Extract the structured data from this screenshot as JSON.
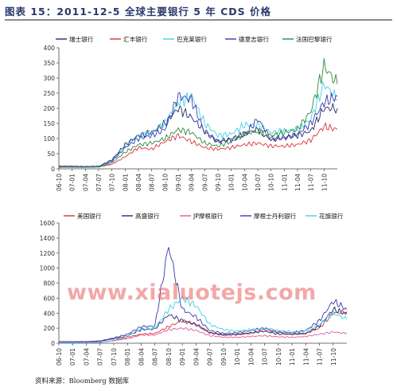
{
  "page": {
    "title": "图表 15：2011-12-5 全球主要银行 5 年 CDS 价格",
    "source": "资料来源：Bloomberg 数据库",
    "watermark": "www.xialuotejs.com"
  },
  "chart_data": [
    {
      "type": "line",
      "title": "",
      "xlabel": "",
      "ylabel": "",
      "ylim": [
        0,
        400
      ],
      "yticks": [
        0,
        50,
        100,
        150,
        200,
        250,
        300,
        350,
        400
      ],
      "xticks": [
        "06-10",
        "07-01",
        "07-04",
        "07-07",
        "07-10",
        "08-01",
        "08-04",
        "08-07",
        "08-10",
        "09-01",
        "09-04",
        "09-07",
        "09-10",
        "10-01",
        "10-04",
        "10-07",
        "10-10",
        "11-01",
        "11-04",
        "11-07",
        "11-10"
      ],
      "legend_position": "top",
      "x": [
        "06-10",
        "07-01",
        "07-04",
        "07-07",
        "07-10",
        "08-01",
        "08-04",
        "08-07",
        "08-10",
        "09-01",
        "09-04",
        "09-07",
        "09-10",
        "10-01",
        "10-04",
        "10-07",
        "10-10",
        "11-01",
        "11-04",
        "11-07",
        "11-10",
        "11-12"
      ],
      "series": [
        {
          "name": "瑞士银行",
          "color": "#1f2d6b",
          "values": [
            8,
            8,
            7,
            8,
            30,
            80,
            110,
            120,
            150,
            200,
            170,
            125,
            90,
            100,
            115,
            130,
            95,
            105,
            110,
            125,
            200,
            200
          ]
        },
        {
          "name": "汇丰银行",
          "color": "#d9333f",
          "values": [
            5,
            5,
            5,
            6,
            15,
            40,
            70,
            65,
            90,
            110,
            90,
            70,
            65,
            70,
            80,
            85,
            75,
            75,
            80,
            95,
            140,
            130
          ]
        },
        {
          "name": "巴克莱银行",
          "color": "#44d0e6",
          "values": [
            7,
            7,
            6,
            8,
            25,
            75,
            110,
            120,
            150,
            220,
            240,
            150,
            110,
            115,
            145,
            145,
            120,
            125,
            130,
            165,
            280,
            230
          ]
        },
        {
          "name": "德意志银行",
          "color": "#3a3ab0",
          "values": [
            9,
            9,
            8,
            9,
            25,
            70,
            100,
            110,
            130,
            240,
            230,
            120,
            90,
            95,
            110,
            165,
            100,
            100,
            115,
            150,
            220,
            240
          ]
        },
        {
          "name": "法国巴黎银行",
          "color": "#2e8b3a",
          "values": [
            6,
            6,
            5,
            6,
            20,
            55,
            80,
            85,
            100,
            130,
            120,
            85,
            75,
            90,
            115,
            125,
            110,
            120,
            130,
            190,
            340,
            280
          ]
        }
      ]
    },
    {
      "type": "line",
      "title": "",
      "xlabel": "",
      "ylabel": "",
      "ylim": [
        0,
        1600
      ],
      "yticks": [
        0,
        200,
        400,
        600,
        800,
        1000,
        1200,
        1400,
        1600
      ],
      "xticks": [
        "06-10",
        "07-01",
        "07-04",
        "07-07",
        "07-10",
        "08-01",
        "08-04",
        "08-07",
        "08-10",
        "09-01",
        "09-04",
        "09-07",
        "09-10",
        "10-01",
        "10-04",
        "10-07",
        "10-10",
        "11-01",
        "11-04",
        "11-07",
        "11-10"
      ],
      "legend_position": "top",
      "x": [
        "06-10",
        "07-01",
        "07-04",
        "07-07",
        "07-10",
        "08-01",
        "08-04",
        "08-07",
        "08-10",
        "09-01",
        "09-04",
        "09-07",
        "09-10",
        "10-01",
        "10-04",
        "10-07",
        "10-10",
        "11-01",
        "11-04",
        "11-07",
        "11-10",
        "11-12"
      ],
      "series": [
        {
          "name": "美国银行",
          "color": "#d9333f",
          "values": [
            10,
            10,
            10,
            12,
            35,
            80,
            120,
            130,
            220,
            300,
            250,
            140,
            110,
            120,
            130,
            180,
            140,
            120,
            130,
            200,
            400,
            420
          ]
        },
        {
          "name": "高盛银行",
          "color": "#1f2d6b",
          "values": [
            20,
            20,
            22,
            30,
            60,
            100,
            180,
            190,
            380,
            300,
            250,
            140,
            110,
            115,
            140,
            160,
            120,
            120,
            130,
            230,
            450,
            390
          ]
        },
        {
          "name": "JP摩根银行",
          "color": "#e05a9a",
          "values": [
            15,
            14,
            14,
            18,
            35,
            60,
            110,
            110,
            180,
            200,
            170,
            100,
            80,
            80,
            90,
            100,
            85,
            80,
            90,
            120,
            150,
            130
          ]
        },
        {
          "name": "摩根士丹利银行",
          "color": "#3a3ab0",
          "values": [
            20,
            20,
            22,
            30,
            70,
            120,
            220,
            230,
            1300,
            450,
            350,
            170,
            130,
            140,
            170,
            200,
            150,
            140,
            170,
            300,
            560,
            450
          ]
        },
        {
          "name": "花旗银行",
          "color": "#44d0e6",
          "values": [
            8,
            8,
            8,
            10,
            40,
            100,
            190,
            200,
            450,
            600,
            500,
            250,
            180,
            160,
            180,
            200,
            170,
            150,
            160,
            250,
            400,
            320
          ]
        }
      ]
    }
  ]
}
